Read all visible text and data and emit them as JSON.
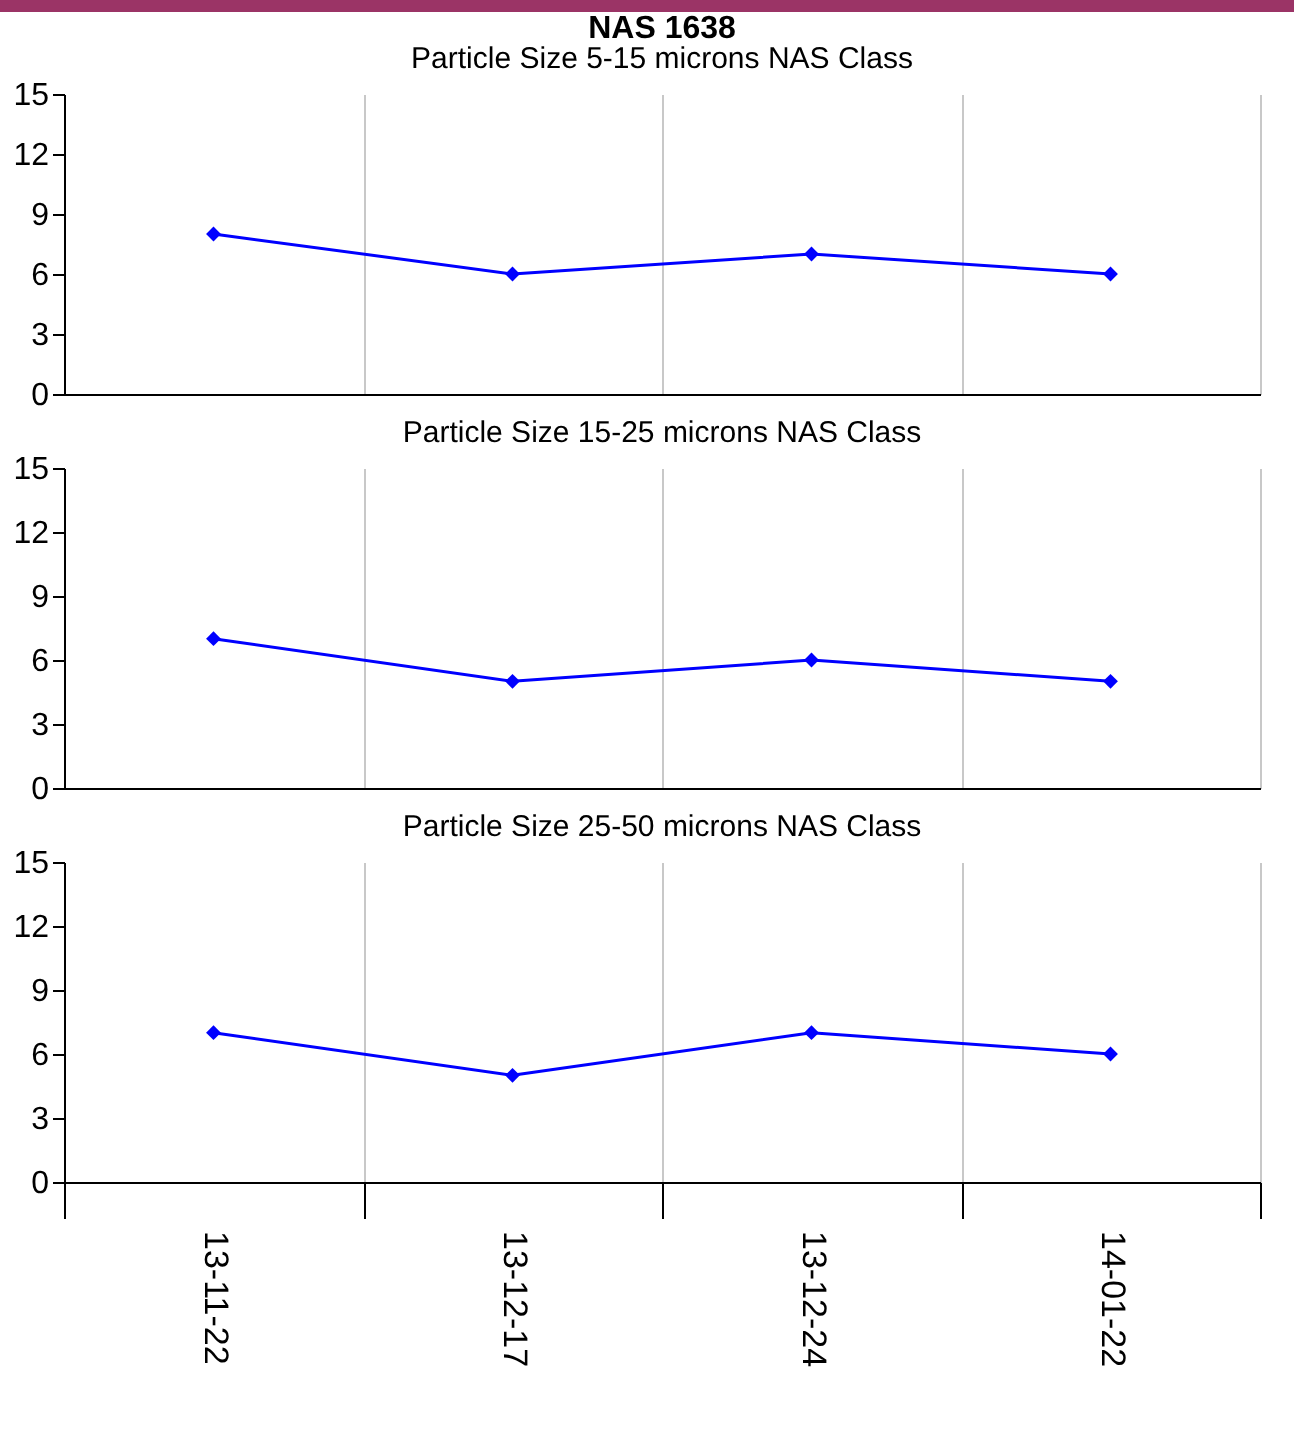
{
  "chart_data": [
    {
      "type": "line",
      "title": "NAS 1638",
      "subtitle": "Particle Size 5-15 microns NAS Class",
      "categories": [
        null,
        null,
        null,
        null
      ],
      "series": [
        {
          "color": "#0000ff",
          "values": [
            8,
            6,
            7,
            6
          ]
        }
      ],
      "ylim": [
        0,
        15
      ],
      "yticks": [
        0,
        3,
        6,
        9,
        12,
        15
      ],
      "grid": "x",
      "marker": "diamond",
      "tick_labels": "y"
    },
    {
      "type": "line",
      "title": "Particle Size 15-25 microns NAS Class",
      "categories": [
        null,
        null,
        null,
        null
      ],
      "series": [
        {
          "color": "#0000ff",
          "values": [
            7,
            5,
            6,
            5
          ]
        }
      ],
      "ylim": [
        0,
        15
      ],
      "yticks": [
        0,
        3,
        6,
        9,
        12,
        15
      ],
      "grid": "x",
      "marker": "diamond",
      "tick_labels": "y"
    },
    {
      "type": "line",
      "title": "Particle Size 25-50 microns NAS Class",
      "categories": [
        "13-11-22",
        "13-12-17",
        "13-12-24",
        "14-01-22"
      ],
      "series": [
        {
          "color": "#0000ff",
          "values": [
            7,
            5,
            7,
            6
          ]
        }
      ],
      "ylim": [
        0,
        15
      ],
      "yticks": [
        0,
        3,
        6,
        9,
        12,
        15
      ],
      "grid": "x",
      "marker": "diamond"
    }
  ]
}
